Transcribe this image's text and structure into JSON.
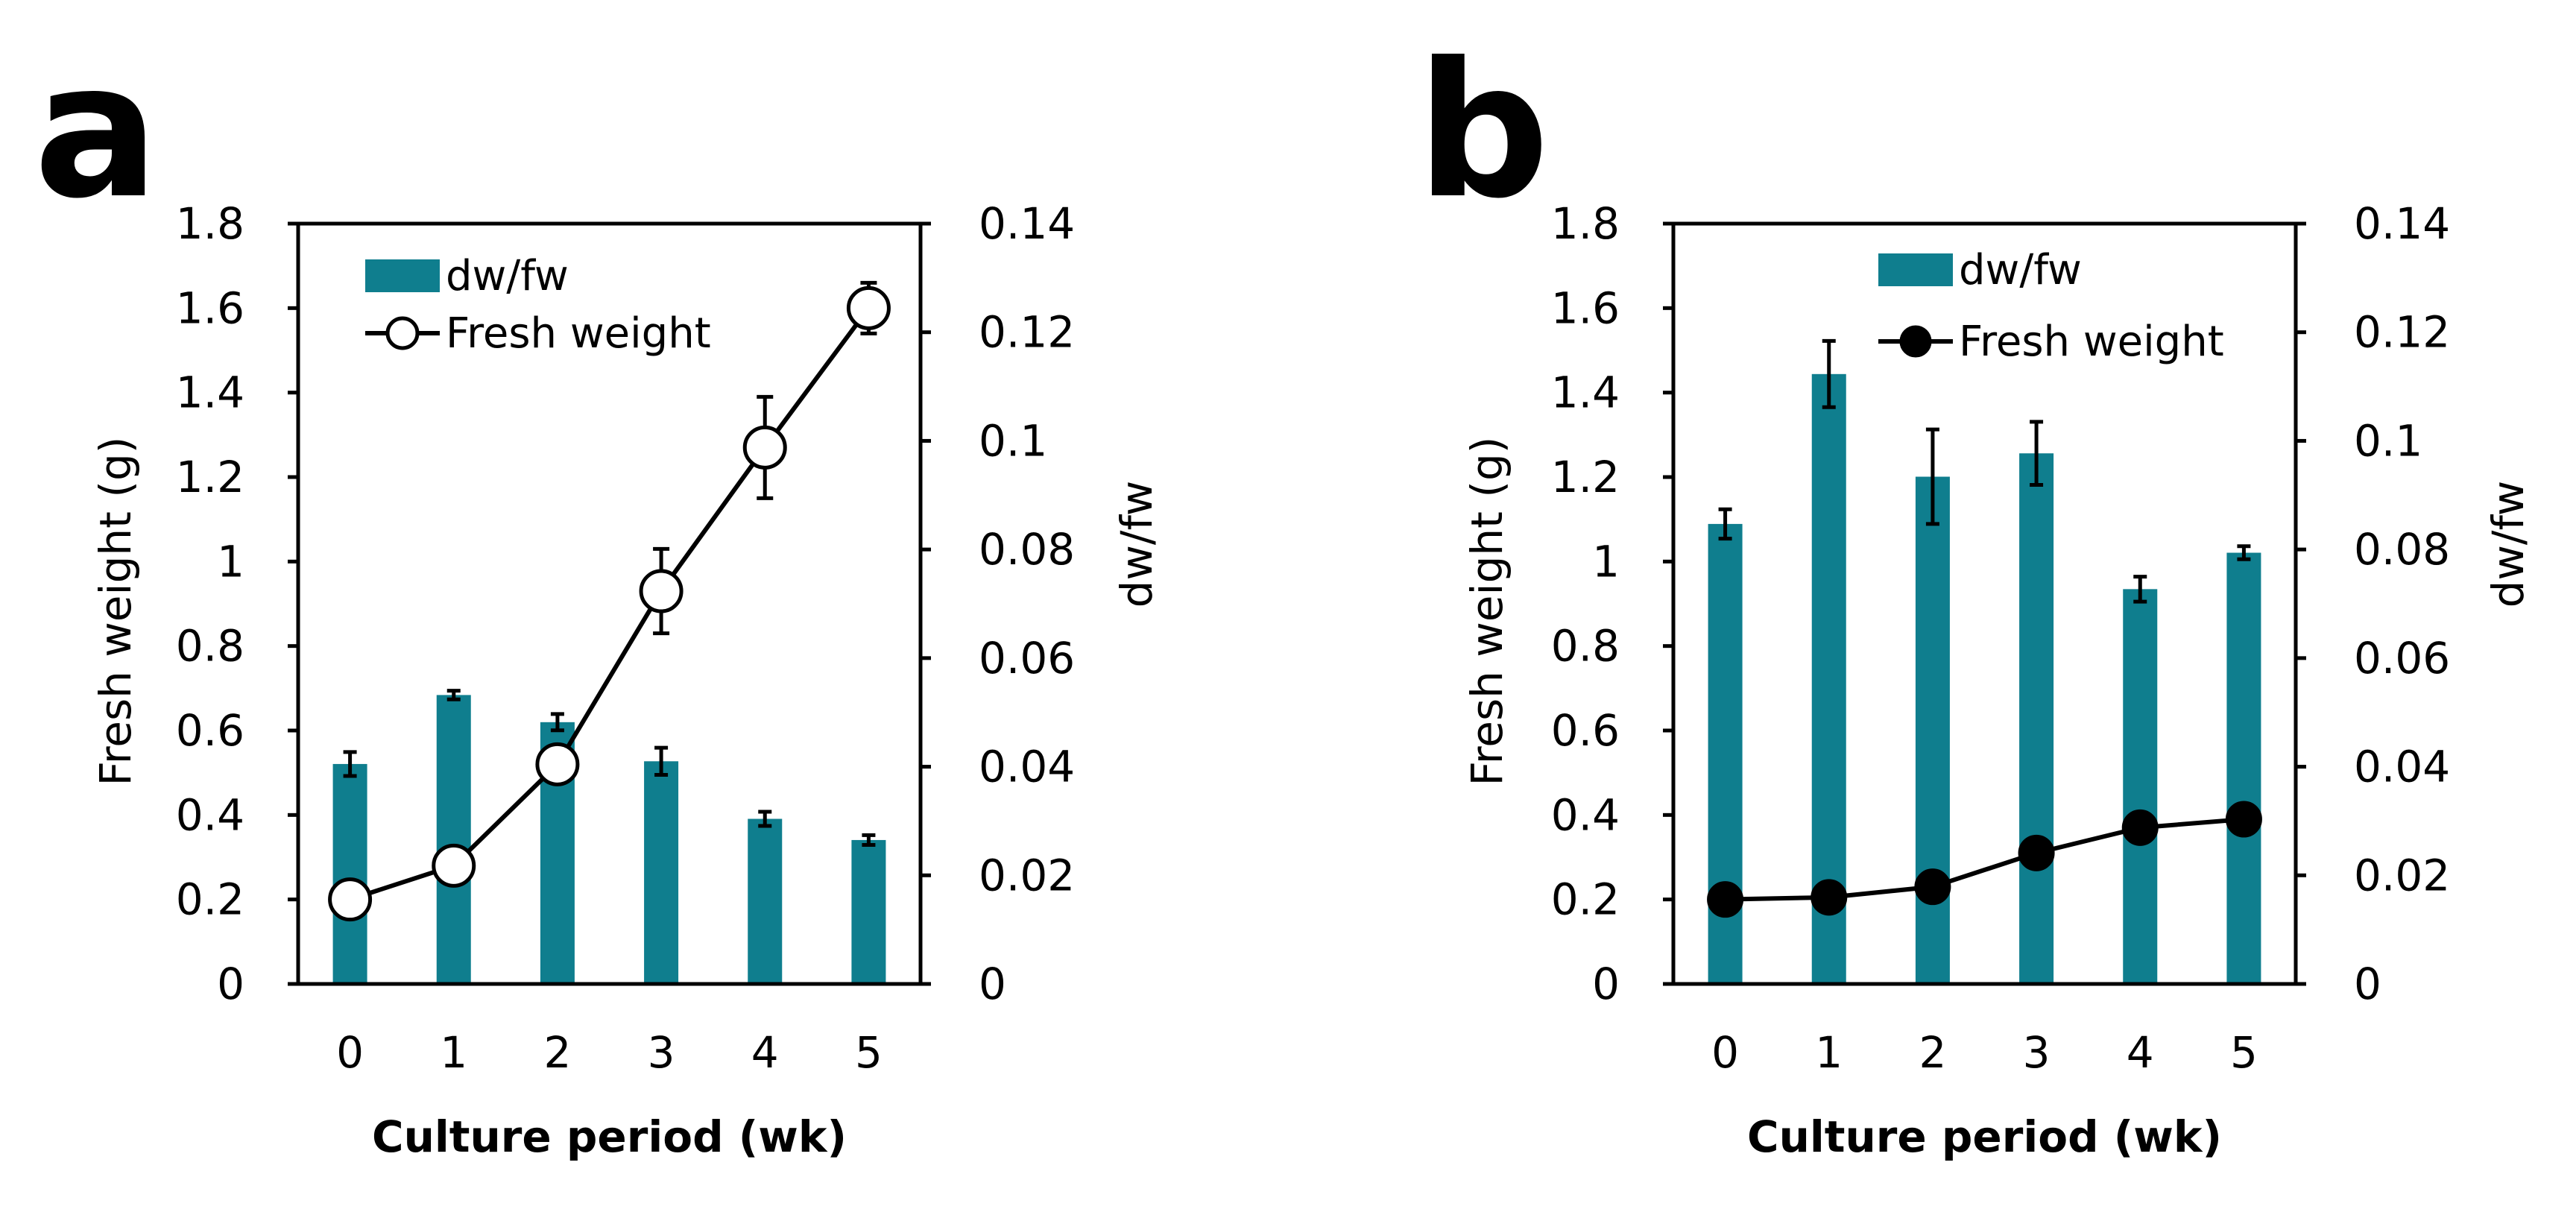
{
  "chart_data": [
    {
      "panel_label": "a",
      "type": "bar+line",
      "xlabel": "Culture period (wk)",
      "ylabel": "Fresh weight (g)",
      "y2label": "dw/fw",
      "categories": [
        "0",
        "1",
        "2",
        "3",
        "4",
        "5"
      ],
      "ylim": [
        0,
        1.8
      ],
      "yticks": [
        "0",
        "0.2",
        "0.4",
        "0.6",
        "0.8",
        "1",
        "1.2",
        "1.4",
        "1.6",
        "1.8"
      ],
      "y2lim": [
        0,
        0.14
      ],
      "y2ticks": [
        "0",
        "0.02",
        "0.04",
        "0.06",
        "0.08",
        "0.1",
        "0.12",
        "0.14"
      ],
      "legend_position": "top-left",
      "bar_color": "#0f7e8e",
      "series": [
        {
          "name": "dw/fw",
          "kind": "bar",
          "axis": "right",
          "values": [
            0.0405,
            0.0532,
            0.0482,
            0.041,
            0.0304,
            0.0265
          ],
          "errors": [
            0.0022,
            0.0008,
            0.0015,
            0.0025,
            0.0013,
            0.0009
          ]
        },
        {
          "name": "Fresh weight",
          "kind": "line",
          "axis": "left",
          "marker": "open-circle",
          "values": [
            0.2,
            0.28,
            0.52,
            0.93,
            1.27,
            1.6
          ],
          "errors": [
            0,
            0,
            0,
            0.1,
            0.12,
            0.06
          ]
        }
      ]
    },
    {
      "panel_label": "b",
      "type": "bar+line",
      "xlabel": "Culture period (wk)",
      "ylabel": "Fresh weight (g)",
      "y2label": "dw/fw",
      "categories": [
        "0",
        "1",
        "2",
        "3",
        "4",
        "5"
      ],
      "ylim": [
        0,
        1.8
      ],
      "yticks": [
        "0",
        "0.2",
        "0.4",
        "0.6",
        "0.8",
        "1",
        "1.2",
        "1.4",
        "1.6",
        "1.8"
      ],
      "y2lim": [
        0,
        0.14
      ],
      "y2ticks": [
        "0",
        "0.02",
        "0.04",
        "0.06",
        "0.08",
        "0.1",
        "0.12",
        "0.14"
      ],
      "legend_position": "top-center",
      "bar_color": "#0f7e8e",
      "series": [
        {
          "name": "dw/fw",
          "kind": "bar",
          "axis": "right",
          "values": [
            0.0847,
            0.1123,
            0.0934,
            0.0977,
            0.0727,
            0.0794
          ],
          "errors": [
            0.0027,
            0.0061,
            0.0087,
            0.0058,
            0.0023,
            0.0012
          ]
        },
        {
          "name": "Fresh weight",
          "kind": "line",
          "axis": "left",
          "marker": "filled-circle",
          "values": [
            0.2,
            0.205,
            0.23,
            0.31,
            0.37,
            0.39
          ],
          "errors": [
            0,
            0,
            0,
            0,
            0,
            0
          ]
        }
      ]
    }
  ]
}
